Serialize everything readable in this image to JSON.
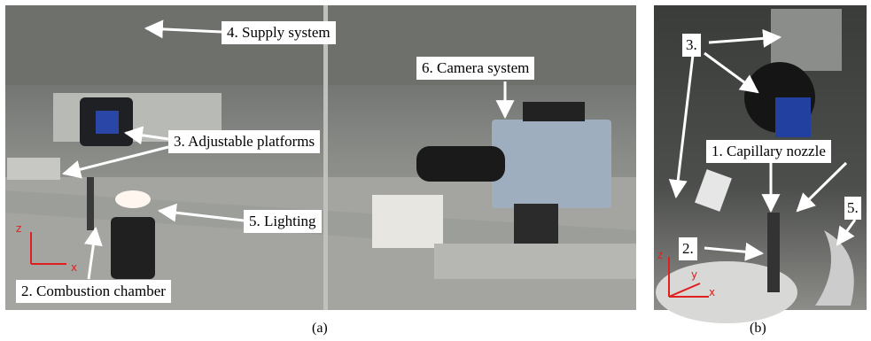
{
  "panels": [
    {
      "caption": "(a)",
      "labels": [
        "4. Supply system",
        "6. Camera system",
        "3. Adjustable platforms",
        "5. Lighting",
        "2. Combustion chamber"
      ],
      "axes": [
        "z",
        "x"
      ]
    },
    {
      "caption": "(b)",
      "labels": [
        "3.",
        "1. Capillary nozzle",
        "5.",
        "2."
      ],
      "axes": [
        "z",
        "y",
        "x"
      ]
    }
  ]
}
